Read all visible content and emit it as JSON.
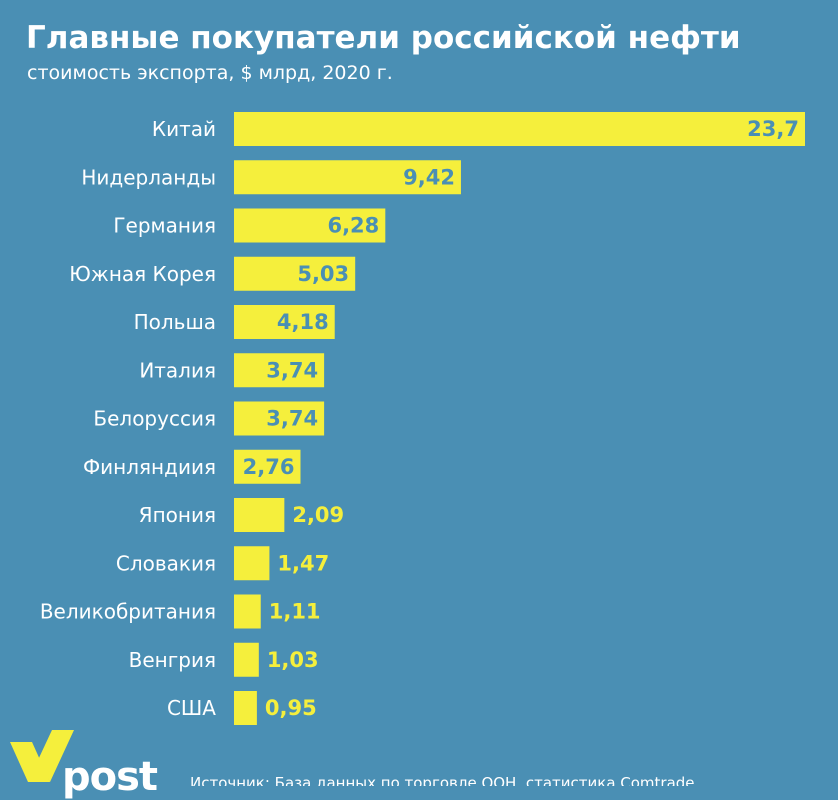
{
  "header": {
    "title": "Главные покупатели российской нефти",
    "subtitle": "стоимость экспорта, $ млрд, 2020 г."
  },
  "colors": {
    "background": "#4a8fb4",
    "bar": "#f5ef3c",
    "label_inside": "#4a8fb4",
    "label_outside": "#f5ef3c",
    "text": "#ffffff"
  },
  "chart_data": {
    "type": "bar",
    "orientation": "horizontal",
    "title": "Главные покупатели российской нефти",
    "subtitle": "стоимость экспорта, $ млрд, 2020 г.",
    "categories": [
      "Китай",
      "Нидерланды",
      "Германия",
      "Южная Корея",
      "Польша",
      "Италия",
      "Белоруссия",
      "Финляндиия",
      "Япония",
      "Словакия",
      "Великобритания",
      "Венгрия",
      "США"
    ],
    "values": [
      23.7,
      9.42,
      6.28,
      5.03,
      4.18,
      3.74,
      3.74,
      2.76,
      2.09,
      1.47,
      1.11,
      1.03,
      0.95
    ],
    "value_labels": [
      "23,7",
      "9,42",
      "6,28",
      "5,03",
      "4,18",
      "3,74",
      "3,74",
      "2,76",
      "2,09",
      "1,47",
      "1,11",
      "1,03",
      "0,95"
    ],
    "xlim": [
      0,
      23.7
    ],
    "grid": false,
    "legend": "none"
  },
  "footer": {
    "logo": "post",
    "source": "Источник: База данных по торговле ООН, статистика Comtrade"
  }
}
